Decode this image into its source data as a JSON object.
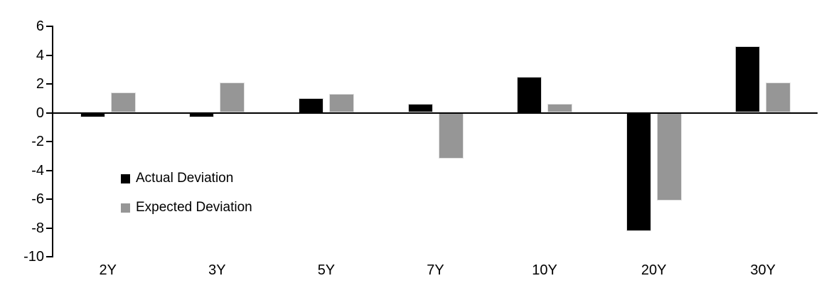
{
  "chart_data": {
    "type": "bar",
    "title": "",
    "xlabel": "",
    "ylabel": "",
    "categories": [
      "2Y",
      "3Y",
      "5Y",
      "7Y",
      "10Y",
      "20Y",
      "30Y"
    ],
    "series": [
      {
        "name": "Actual Deviation",
        "color": "#000000",
        "values": [
          -0.3,
          -0.3,
          1.0,
          0.6,
          2.5,
          -8.2,
          4.6
        ]
      },
      {
        "name": "Expected Deviation",
        "color": "#969696",
        "values": [
          1.4,
          2.1,
          1.3,
          -3.2,
          0.6,
          -6.1,
          2.1
        ]
      }
    ],
    "ylim": [
      -10,
      6
    ],
    "yticks": [
      6,
      4,
      2,
      0,
      -2,
      -4,
      -6,
      -8,
      -10
    ],
    "grid": false,
    "legend_position": "inside-left",
    "axis_color": "#000000",
    "background_color": "#ffffff"
  }
}
